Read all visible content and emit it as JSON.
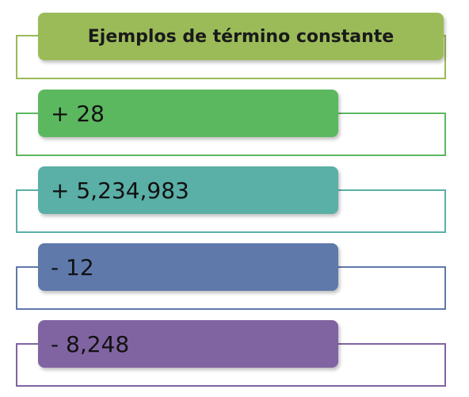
{
  "title": {
    "text": "Ejemplos de término constante",
    "color": "#9bbb59",
    "border_color": "#9bbb59"
  },
  "items": [
    {
      "text": "+ 28",
      "color": "#5cb85f",
      "border_color": "#5cb85f"
    },
    {
      "text": "+ 5,234,983",
      "color": "#5aafa6",
      "border_color": "#5aafa6"
    },
    {
      "text": "- 12",
      "color": "#5f79ab",
      "border_color": "#5f79ab"
    },
    {
      "text": "- 8,248",
      "color": "#8064a2",
      "border_color": "#8064a2"
    }
  ]
}
